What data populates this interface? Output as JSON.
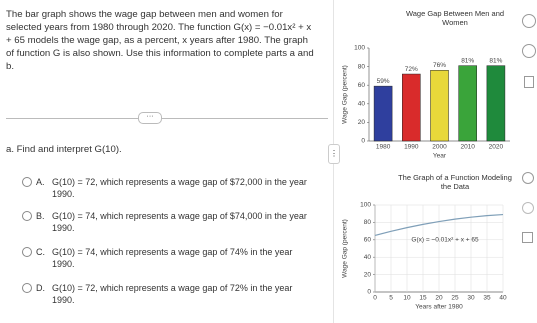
{
  "question": {
    "intro": "The bar graph shows the wage gap between men and women for selected years from 1980 through 2020. The function G(x) = −0.01x² + x + 65 models the wage gap, as a percent, x years after 1980. The graph of function G is also shown. Use this information to complete parts a and b.",
    "part": "a. Find and interpret G(10).",
    "options": [
      {
        "letter": "A.",
        "text": "G(10) = 72, which represents a wage gap of $72,000 in the year 1990."
      },
      {
        "letter": "B.",
        "text": "G(10) = 74, which represents a wage gap of $74,000 in the year 1990."
      },
      {
        "letter": "C.",
        "text": "G(10) = 74, which represents a wage gap of 74% in the year 1990."
      },
      {
        "letter": "D.",
        "text": "G(10) = 72, which represents a wage gap of 72% in the year 1990."
      }
    ]
  },
  "bar_chart": {
    "type": "bar",
    "title": "Wage Gap Between Men and Women",
    "x_label": "Year",
    "y_label": "Wage Gap (percent)",
    "categories": [
      "1980",
      "1990",
      "2000",
      "2010",
      "2020"
    ],
    "values": [
      59,
      72,
      76,
      81,
      81
    ],
    "value_labels": [
      "59%",
      "72%",
      "76%",
      "81%",
      "81%"
    ],
    "colors": [
      "#2f3f9e",
      "#d92b2b",
      "#e8d83a",
      "#3aa43a",
      "#1f8a3c"
    ],
    "ylim": [
      0,
      100
    ],
    "yticks": [
      0,
      20,
      40,
      60,
      80,
      100
    ]
  },
  "function_chart": {
    "type": "line",
    "title": "The Graph of a Function Modeling the Data",
    "x_label": "Years after 1980",
    "y_label": "Wage Gap (percent)",
    "annotation": "G(x) = −0.01x² + x + 65",
    "x": [
      0,
      5,
      10,
      15,
      20,
      25,
      30,
      35,
      40
    ],
    "values": [
      65,
      69.75,
      74,
      77.75,
      81,
      83.75,
      86,
      87.75,
      89
    ],
    "color": "#7f9fb8",
    "xlim": [
      0,
      40
    ],
    "ylim": [
      0,
      100
    ],
    "xticks": [
      0,
      5,
      10,
      15,
      20,
      25,
      30,
      35,
      40
    ],
    "yticks": [
      0,
      20,
      40,
      60,
      80,
      100
    ]
  }
}
